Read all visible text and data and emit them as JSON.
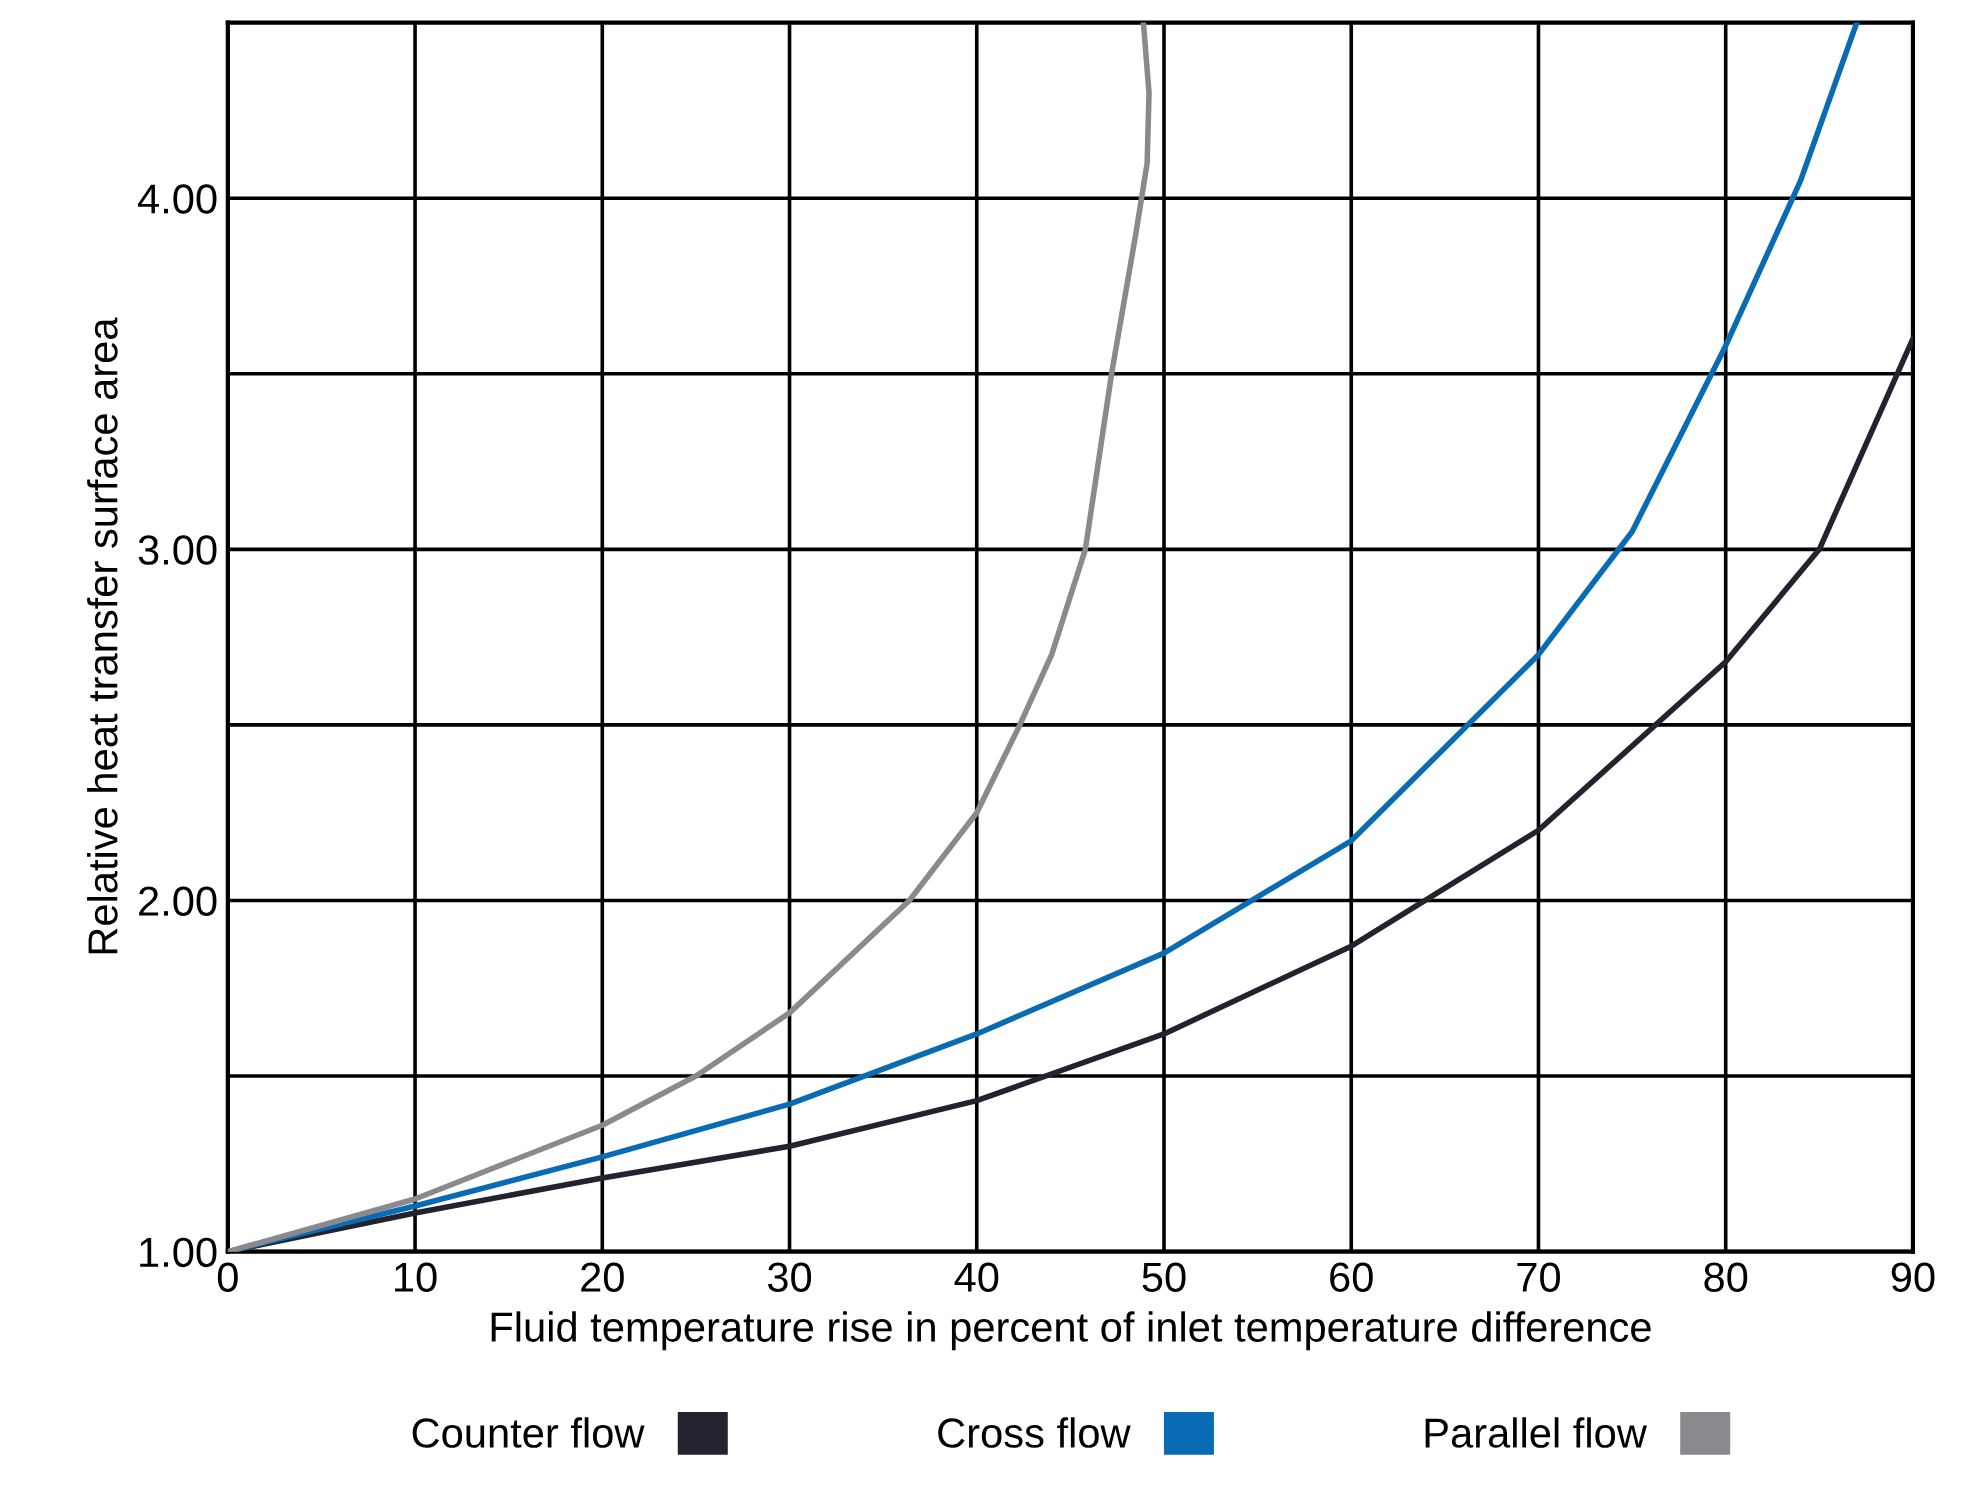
{
  "chart_data": {
    "type": "line",
    "xlabel": "Fluid temperature rise in percent of inlet temperature difference",
    "ylabel": "Relative heat transfer surface area",
    "xlim": [
      0,
      90
    ],
    "ylim": [
      1,
      4.5
    ],
    "xticks": [
      0,
      10,
      20,
      30,
      40,
      50,
      60,
      70,
      80,
      90
    ],
    "yticks": [
      {
        "value": 1,
        "label": "1.00"
      },
      {
        "value": 1.5,
        "label": null
      },
      {
        "value": 2,
        "label": "2.00"
      },
      {
        "value": 2.5,
        "label": null
      },
      {
        "value": 3,
        "label": "3.00"
      },
      {
        "value": 3.5,
        "label": null
      },
      {
        "value": 4,
        "label": "4.00"
      }
    ],
    "grid": true,
    "legend": "bottom",
    "marker": "none",
    "line_style": "solid",
    "series": [
      {
        "name": "Counter flow",
        "color": "#23232f",
        "x": [
          0,
          10,
          20,
          30,
          40,
          50,
          60,
          70,
          80,
          85,
          90
        ],
        "values": [
          1,
          1.11,
          1.21,
          1.3,
          1.43,
          1.62,
          1.87,
          2.2,
          2.68,
          3.0,
          3.6
        ]
      },
      {
        "name": "Cross flow",
        "color": "#0a6bb5",
        "x": [
          0,
          10,
          20,
          30,
          40,
          50,
          60,
          70,
          75,
          80,
          84,
          87
        ],
        "values": [
          1,
          1.13,
          1.27,
          1.42,
          1.62,
          1.85,
          2.17,
          2.7,
          3.05,
          3.58,
          4.05,
          4.5
        ]
      },
      {
        "name": "Parallel flow",
        "color": "#8a8a8e",
        "x": [
          0,
          10,
          20,
          25,
          30,
          36.4,
          40,
          42.3,
          44,
          45.8,
          47.2,
          48.5,
          49.1,
          49.2,
          48.9
        ],
        "values": [
          1,
          1.15,
          1.36,
          1.5,
          1.68,
          2.0,
          2.25,
          2.5,
          2.7,
          3.0,
          3.5,
          3.9,
          4.1,
          4.3,
          4.5
        ]
      }
    ]
  }
}
